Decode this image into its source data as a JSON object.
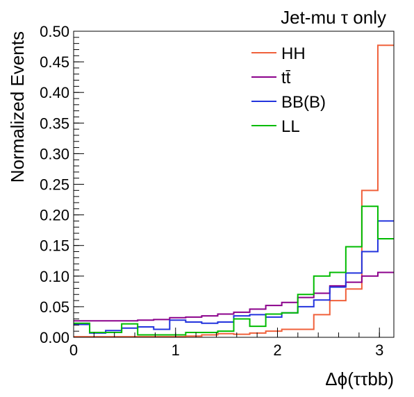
{
  "chart_data": {
    "type": "histogram",
    "title": "Jet-mu τ only",
    "xlabel": "Δϕ(ττbb)",
    "ylabel": "Normalized Events",
    "xlim": [
      0,
      3.1416
    ],
    "ylim": [
      0,
      0.5
    ],
    "x_ticks": [
      0,
      1,
      2,
      3
    ],
    "x_tick_labels": [
      "0",
      "1",
      "2",
      "3"
    ],
    "y_ticks": [
      0,
      0.05,
      0.1,
      0.15,
      0.2,
      0.25,
      0.3,
      0.35,
      0.4,
      0.45,
      0.5
    ],
    "y_tick_labels": [
      "0.00",
      "0.05",
      "0.10",
      "0.15",
      "0.20",
      "0.25",
      "0.30",
      "0.35",
      "0.40",
      "0.45",
      "0.50"
    ],
    "n_bins": 20,
    "legend_position": "top-right",
    "series": [
      {
        "name": "HH",
        "color": "#f0603a",
        "values": [
          0.001,
          0.001,
          0.001,
          0.001,
          0.001,
          0.001,
          0.001,
          0.002,
          0.004,
          0.006,
          0.005,
          0.007,
          0.01,
          0.013,
          0.013,
          0.037,
          0.06,
          0.079,
          0.24,
          0.477
        ]
      },
      {
        "name": "tt̄",
        "color": "#8b008b",
        "values": [
          0.027,
          0.027,
          0.027,
          0.027,
          0.028,
          0.029,
          0.032,
          0.033,
          0.035,
          0.038,
          0.041,
          0.046,
          0.052,
          0.057,
          0.065,
          0.072,
          0.084,
          0.09,
          0.1,
          0.106
        ]
      },
      {
        "name": "BB(B)",
        "color": "#2233dd",
        "values": [
          0.021,
          0.007,
          0.011,
          0.015,
          0.017,
          0.013,
          0.028,
          0.025,
          0.023,
          0.025,
          0.035,
          0.037,
          0.033,
          0.04,
          0.05,
          0.061,
          0.082,
          0.105,
          0.14,
          0.19
        ]
      },
      {
        "name": "LL",
        "color": "#00bb00",
        "values": [
          0.023,
          0.008,
          0.008,
          0.022,
          0.004,
          0.004,
          0.004,
          0.008,
          0.008,
          0.01,
          0.03,
          0.018,
          0.038,
          0.04,
          0.07,
          0.1,
          0.106,
          0.148,
          0.214,
          0.161
        ]
      }
    ]
  }
}
